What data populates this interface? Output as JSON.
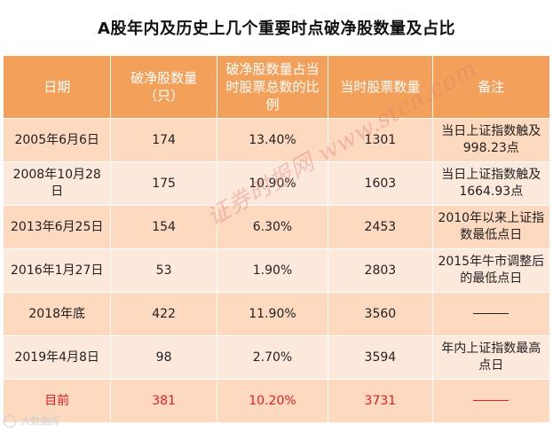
{
  "title": "A股年内及历史上几个重要时点破净股数量及占比",
  "table": {
    "headers": {
      "date": "日期",
      "count": "破净股数量（只）",
      "ratio": "破净股数量占当时股票总数的比例",
      "total": "当时股票数量",
      "note": "备注"
    },
    "rows": [
      {
        "date": "2005年6月6日",
        "count": "174",
        "ratio": "13.40%",
        "total": "1301",
        "note": "当日上证指数触及998.23点"
      },
      {
        "date": "2008年10月28日",
        "count": "175",
        "ratio": "10.90%",
        "total": "1603",
        "note": "当日上证指数触及1664.93点"
      },
      {
        "date": "2013年6月25日",
        "count": "154",
        "ratio": "6.30%",
        "total": "2453",
        "note": "2010年以来上证指数最低点日"
      },
      {
        "date": "2016年1月27日",
        "count": "53",
        "ratio": "1.90%",
        "total": "2803",
        "note": "2015年牛市调整后的最低点日"
      },
      {
        "date": "2018年底",
        "count": "422",
        "ratio": "11.90%",
        "total": "3560",
        "note": ""
      },
      {
        "date": "2019年4月8日",
        "count": "98",
        "ratio": "2.70%",
        "total": "3594",
        "note": "年内上证指数最高点日"
      },
      {
        "date": "目前",
        "count": "381",
        "ratio": "10.20%",
        "total": "3731",
        "note": ""
      }
    ]
  },
  "colors": {
    "header_bg": "#f3a05b",
    "row_odd": "#fcd9bf",
    "row_even": "#fde9dc",
    "highlight_text": "#e62020"
  },
  "watermark": {
    "text": "证券时报网 www.stcn.com"
  },
  "brand": {
    "text": "大数据库",
    "icon": "brand-logo-icon"
  }
}
